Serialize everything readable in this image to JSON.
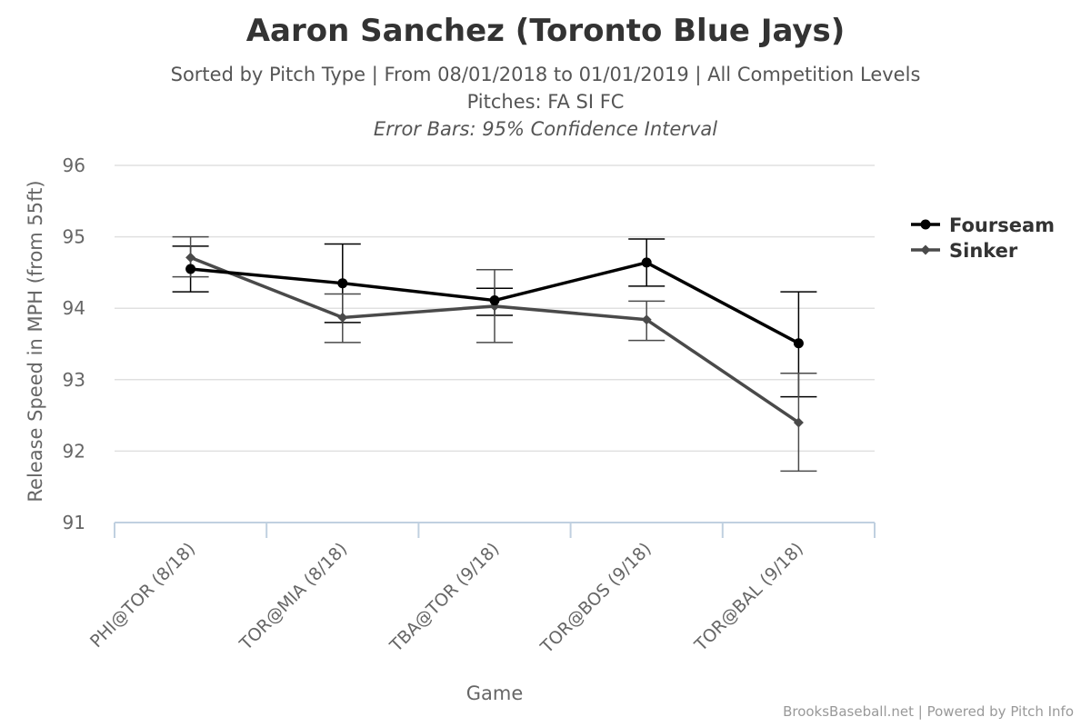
{
  "chart_data": {
    "type": "line",
    "title": "Aaron Sanchez (Toronto Blue Jays)",
    "subtitle": "Sorted by Pitch Type | From 08/01/2018 to 01/01/2019 | All Competition Levels",
    "subtitle2": "Pitches: FA SI FC",
    "subtitle3": "Error Bars: 95% Confidence Interval",
    "xlabel": "Game",
    "ylabel": "Release Speed in MPH (from 55ft)",
    "ylim": [
      91,
      96
    ],
    "yticks": [
      "91",
      "92",
      "93",
      "94",
      "95",
      "96"
    ],
    "categories": [
      "PHI@TOR (8/18)",
      "TOR@MIA (8/18)",
      "TBA@TOR (9/18)",
      "TOR@BOS (9/18)",
      "TOR@BAL (9/18)"
    ],
    "grid": "horizontal",
    "legend_position": "right",
    "series": [
      {
        "name": "Fourseam",
        "color": "#000000",
        "marker": "circle",
        "values": [
          94.55,
          94.35,
          94.11,
          94.64,
          93.51
        ],
        "error_low": [
          94.23,
          93.8,
          93.9,
          94.31,
          92.76
        ],
        "error_high": [
          94.87,
          94.9,
          94.28,
          94.97,
          94.23
        ]
      },
      {
        "name": "Sinker",
        "color": "#4a4a4a",
        "marker": "diamond",
        "values": [
          94.71,
          93.87,
          94.03,
          93.84,
          92.4
        ],
        "error_low": [
          94.44,
          93.52,
          93.52,
          93.55,
          91.72
        ],
        "error_high": [
          95.0,
          94.2,
          94.54,
          94.1,
          93.09
        ]
      }
    ]
  },
  "credits": "BrooksBaseball.net | Powered by Pitch Info"
}
